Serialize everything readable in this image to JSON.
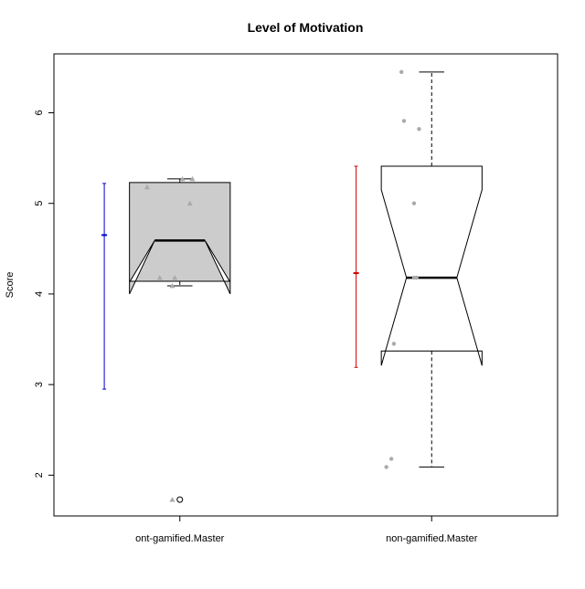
{
  "chart_data": {
    "type": "boxplot",
    "title": "Level of Motivation",
    "ylabel": "Score",
    "xlabel": "",
    "ylim": [
      1.55,
      6.65
    ],
    "yticks": [
      "2",
      "3",
      "4",
      "5",
      "6"
    ],
    "categories": [
      "ont-gamified.Master",
      "non-gamified.Master"
    ],
    "groups": [
      {
        "label": "ont-gamified.Master",
        "box_fill": "#cccccc",
        "notched": true,
        "box": {
          "lower_whisker": 4.09,
          "q1": 4.14,
          "median": 4.59,
          "q3": 5.23,
          "upper_whisker": 5.27,
          "notch_low": 4.0,
          "notch_high": 4.13
        },
        "outliers": [
          1.73
        ],
        "points_shape": "triangle",
        "points": [
          {
            "x": 0.87,
            "y": 5.18
          },
          {
            "x": 0.92,
            "y": 4.18
          },
          {
            "x": 0.97,
            "y": 4.09
          },
          {
            "x": 0.98,
            "y": 4.18
          },
          {
            "x": 1.01,
            "y": 5.27
          },
          {
            "x": 1.04,
            "y": 5.0
          },
          {
            "x": 1.05,
            "y": 5.27
          },
          {
            "x": 0.97,
            "y": 1.73
          }
        ],
        "errorbar": {
          "color": "#0000cc",
          "mean": 4.65,
          "low": 2.95,
          "high": 5.22
        }
      },
      {
        "label": "non-gamified.Master",
        "box_fill": "#ffffff",
        "notched": true,
        "box": {
          "lower_whisker": 2.09,
          "q1": 3.37,
          "median": 4.18,
          "q3": 5.41,
          "upper_whisker": 6.45,
          "notch_low": 3.21,
          "notch_high": 5.15
        },
        "outliers": [],
        "points_shape": "circle",
        "points": [
          {
            "x": 1.88,
            "y": 6.45
          },
          {
            "x": 1.89,
            "y": 5.91
          },
          {
            "x": 1.95,
            "y": 5.82
          },
          {
            "x": 1.93,
            "y": 5.0
          },
          {
            "x": 1.93,
            "y": 4.18
          },
          {
            "x": 1.94,
            "y": 4.18
          },
          {
            "x": 1.85,
            "y": 3.45
          },
          {
            "x": 1.84,
            "y": 2.18
          },
          {
            "x": 1.82,
            "y": 2.09
          }
        ],
        "errorbar": {
          "color": "#cc0000",
          "mean": 4.23,
          "low": 3.19,
          "high": 5.41
        }
      }
    ],
    "grid": false,
    "legend": "none"
  }
}
